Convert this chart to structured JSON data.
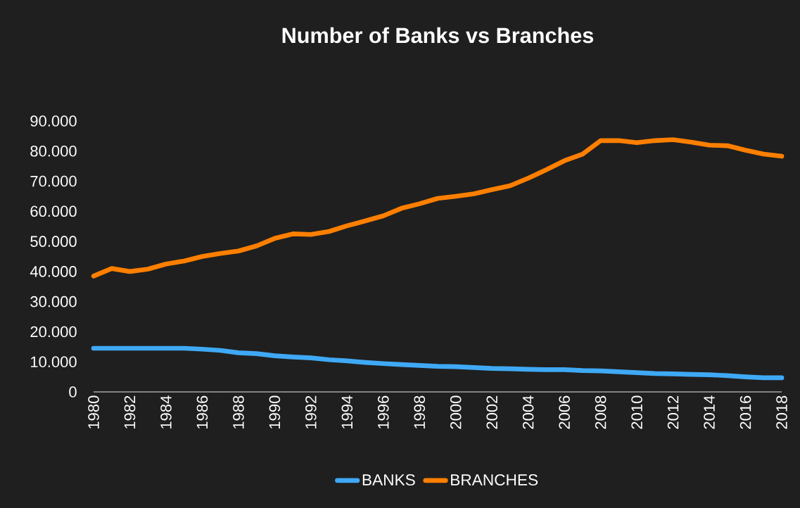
{
  "chart_data": {
    "type": "line",
    "title": "Number of Banks vs Branches",
    "x": [
      1980,
      1981,
      1982,
      1983,
      1984,
      1985,
      1986,
      1987,
      1988,
      1989,
      1990,
      1991,
      1992,
      1993,
      1994,
      1995,
      1996,
      1997,
      1998,
      1999,
      2000,
      2001,
      2002,
      2003,
      2004,
      2005,
      2006,
      2007,
      2008,
      2009,
      2010,
      2011,
      2012,
      2013,
      2014,
      2015,
      2016,
      2017,
      2018
    ],
    "series": [
      {
        "name": "BANKS",
        "color": "#3fa9f5",
        "values": [
          14500,
          14500,
          14500,
          14500,
          14500,
          14500,
          14200,
          13800,
          13000,
          12700,
          12000,
          11600,
          11300,
          10700,
          10300,
          9800,
          9400,
          9100,
          8800,
          8500,
          8400,
          8100,
          7800,
          7700,
          7500,
          7400,
          7400,
          7100,
          7000,
          6700,
          6400,
          6100,
          6000,
          5800,
          5700,
          5400,
          5000,
          4700,
          4700
        ]
      },
      {
        "name": "BRANCHES",
        "color": "#ff7f00",
        "values": [
          38500,
          41000,
          40000,
          40800,
          42500,
          43500,
          45000,
          46000,
          46800,
          48500,
          51000,
          52500,
          52300,
          53300,
          55200,
          56800,
          58500,
          61000,
          62500,
          64300,
          65000,
          65800,
          67200,
          68500,
          71000,
          73800,
          76800,
          79000,
          83500,
          83500,
          82800,
          83500,
          83800,
          83000,
          82000,
          81800,
          80300,
          79000,
          78300
        ]
      }
    ],
    "xlim": [
      1980,
      2018
    ],
    "ylim": [
      0,
      90000
    ],
    "xticks": [
      1980,
      1982,
      1984,
      1986,
      1988,
      1990,
      1992,
      1994,
      1996,
      1998,
      2000,
      2002,
      2004,
      2006,
      2008,
      2010,
      2012,
      2014,
      2016,
      2018
    ],
    "yticks": [
      0,
      {
        "value": 10000,
        "label": "10.000"
      },
      {
        "value": 20000,
        "label": "20.000"
      },
      {
        "value": 30000,
        "label": "30.000"
      },
      {
        "value": 40000,
        "label": "40.000"
      },
      {
        "value": 50000,
        "label": "50.000"
      },
      {
        "value": 60000,
        "label": "60.000"
      },
      {
        "value": 70000,
        "label": "70.000"
      },
      {
        "value": 80000,
        "label": "80.000"
      },
      {
        "value": 90000,
        "label": "90.000"
      }
    ],
    "legend": "bottom",
    "marker": "none",
    "line_style": "solid"
  }
}
